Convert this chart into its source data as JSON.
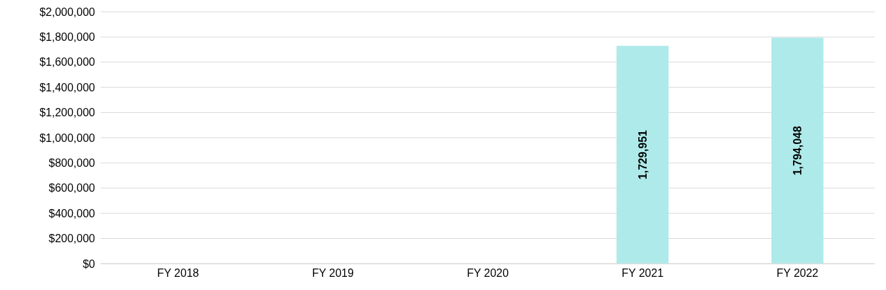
{
  "chart_data": {
    "type": "bar",
    "categories": [
      "FY 2018",
      "FY 2019",
      "FY 2020",
      "FY 2021",
      "FY 2022"
    ],
    "values": [
      null,
      null,
      null,
      1729951,
      1794048
    ],
    "color": "#aeeae9",
    "ylim": [
      0,
      2000000
    ],
    "yticks": [
      {
        "value": 0,
        "label": "$0"
      },
      {
        "value": 200000,
        "label": "$200,000"
      },
      {
        "value": 400000,
        "label": "$400,000"
      },
      {
        "value": 600000,
        "label": "$600,000"
      },
      {
        "value": 800000,
        "label": "$800,000"
      },
      {
        "value": 1000000,
        "label": "$1,000,000"
      },
      {
        "value": 1200000,
        "label": "$1,200,000"
      },
      {
        "value": 1400000,
        "label": "$1,400,000"
      },
      {
        "value": 1600000,
        "label": "$1,600,000"
      },
      {
        "value": 1800000,
        "label": "$1,800,000"
      },
      {
        "value": 2000000,
        "label": "$2,000,000"
      }
    ],
    "grid": "y",
    "value_labels": [
      null,
      null,
      null,
      "1,729,951",
      "1,794,048"
    ]
  }
}
